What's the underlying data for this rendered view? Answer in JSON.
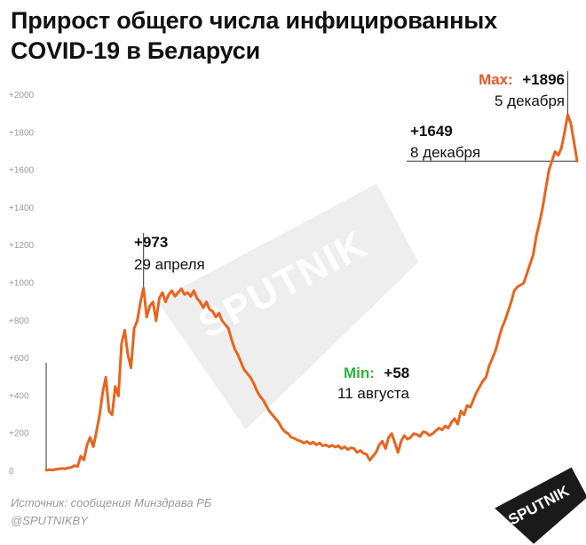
{
  "title": "Прирост общего числа инфицированных COVID-19 в Беларуси",
  "source": "Источник: сообщения Минздрава РБ",
  "handle": "@SPUTNIKBY",
  "watermark": "SPUTNIK",
  "logo": "SPUTNIK",
  "colors": {
    "line": "#e8641e",
    "max": "#e35a25",
    "min": "#2db53a",
    "text": "#111111",
    "axis": "#999999"
  },
  "annotations": {
    "spring_peak": {
      "value": "+973",
      "date": "29 апреля"
    },
    "min": {
      "prefix": "Min:",
      "value": "+58",
      "date": "11 августа"
    },
    "max": {
      "prefix": "Max:",
      "value": "+1896",
      "date": "5 декабря"
    },
    "last": {
      "value": "+1649",
      "date": "8 декабря"
    }
  },
  "chart_data": {
    "type": "line",
    "ylim": [
      0,
      2000
    ],
    "yticks": [
      "0",
      "+200",
      "+400",
      "+600",
      "+800",
      "+1000",
      "+1200",
      "+1400",
      "+1600",
      "+1800",
      "+2000"
    ],
    "series": [
      {
        "values": [
          5,
          8,
          6,
          10,
          12,
          15,
          13,
          18,
          20,
          30,
          25,
          80,
          60,
          140,
          180,
          130,
          210,
          300,
          420,
          500,
          320,
          300,
          450,
          400,
          680,
          750,
          620,
          550,
          760,
          800,
          900,
          973,
          820,
          880,
          900,
          800,
          920,
          950,
          900,
          940,
          960,
          930,
          950,
          970,
          940,
          950,
          930,
          960,
          920,
          900,
          870,
          900,
          860,
          850,
          820,
          840,
          800,
          780,
          760,
          700,
          650,
          620,
          580,
          540,
          520,
          500,
          470,
          430,
          400,
          380,
          350,
          320,
          300,
          280,
          260,
          230,
          210,
          200,
          180,
          175,
          165,
          160,
          150,
          158,
          145,
          155,
          140,
          150,
          135,
          140,
          130,
          138,
          128,
          135,
          120,
          130,
          115,
          125,
          120,
          100,
          110,
          95,
          90,
          58,
          80,
          100,
          140,
          160,
          120,
          180,
          200,
          150,
          100,
          160,
          190,
          170,
          180,
          200,
          195,
          185,
          210,
          205,
          190,
          200,
          215,
          230,
          220,
          240,
          230,
          260,
          280,
          250,
          320,
          300,
          350,
          340,
          380,
          420,
          450,
          480,
          500,
          560,
          600,
          640,
          700,
          760,
          800,
          850,
          900,
          960,
          980,
          990,
          1000,
          1050,
          1100,
          1150,
          1250,
          1320,
          1400,
          1500,
          1600,
          1650,
          1700,
          1680,
          1720,
          1800,
          1896,
          1850,
          1750,
          1649
        ]
      }
    ]
  }
}
